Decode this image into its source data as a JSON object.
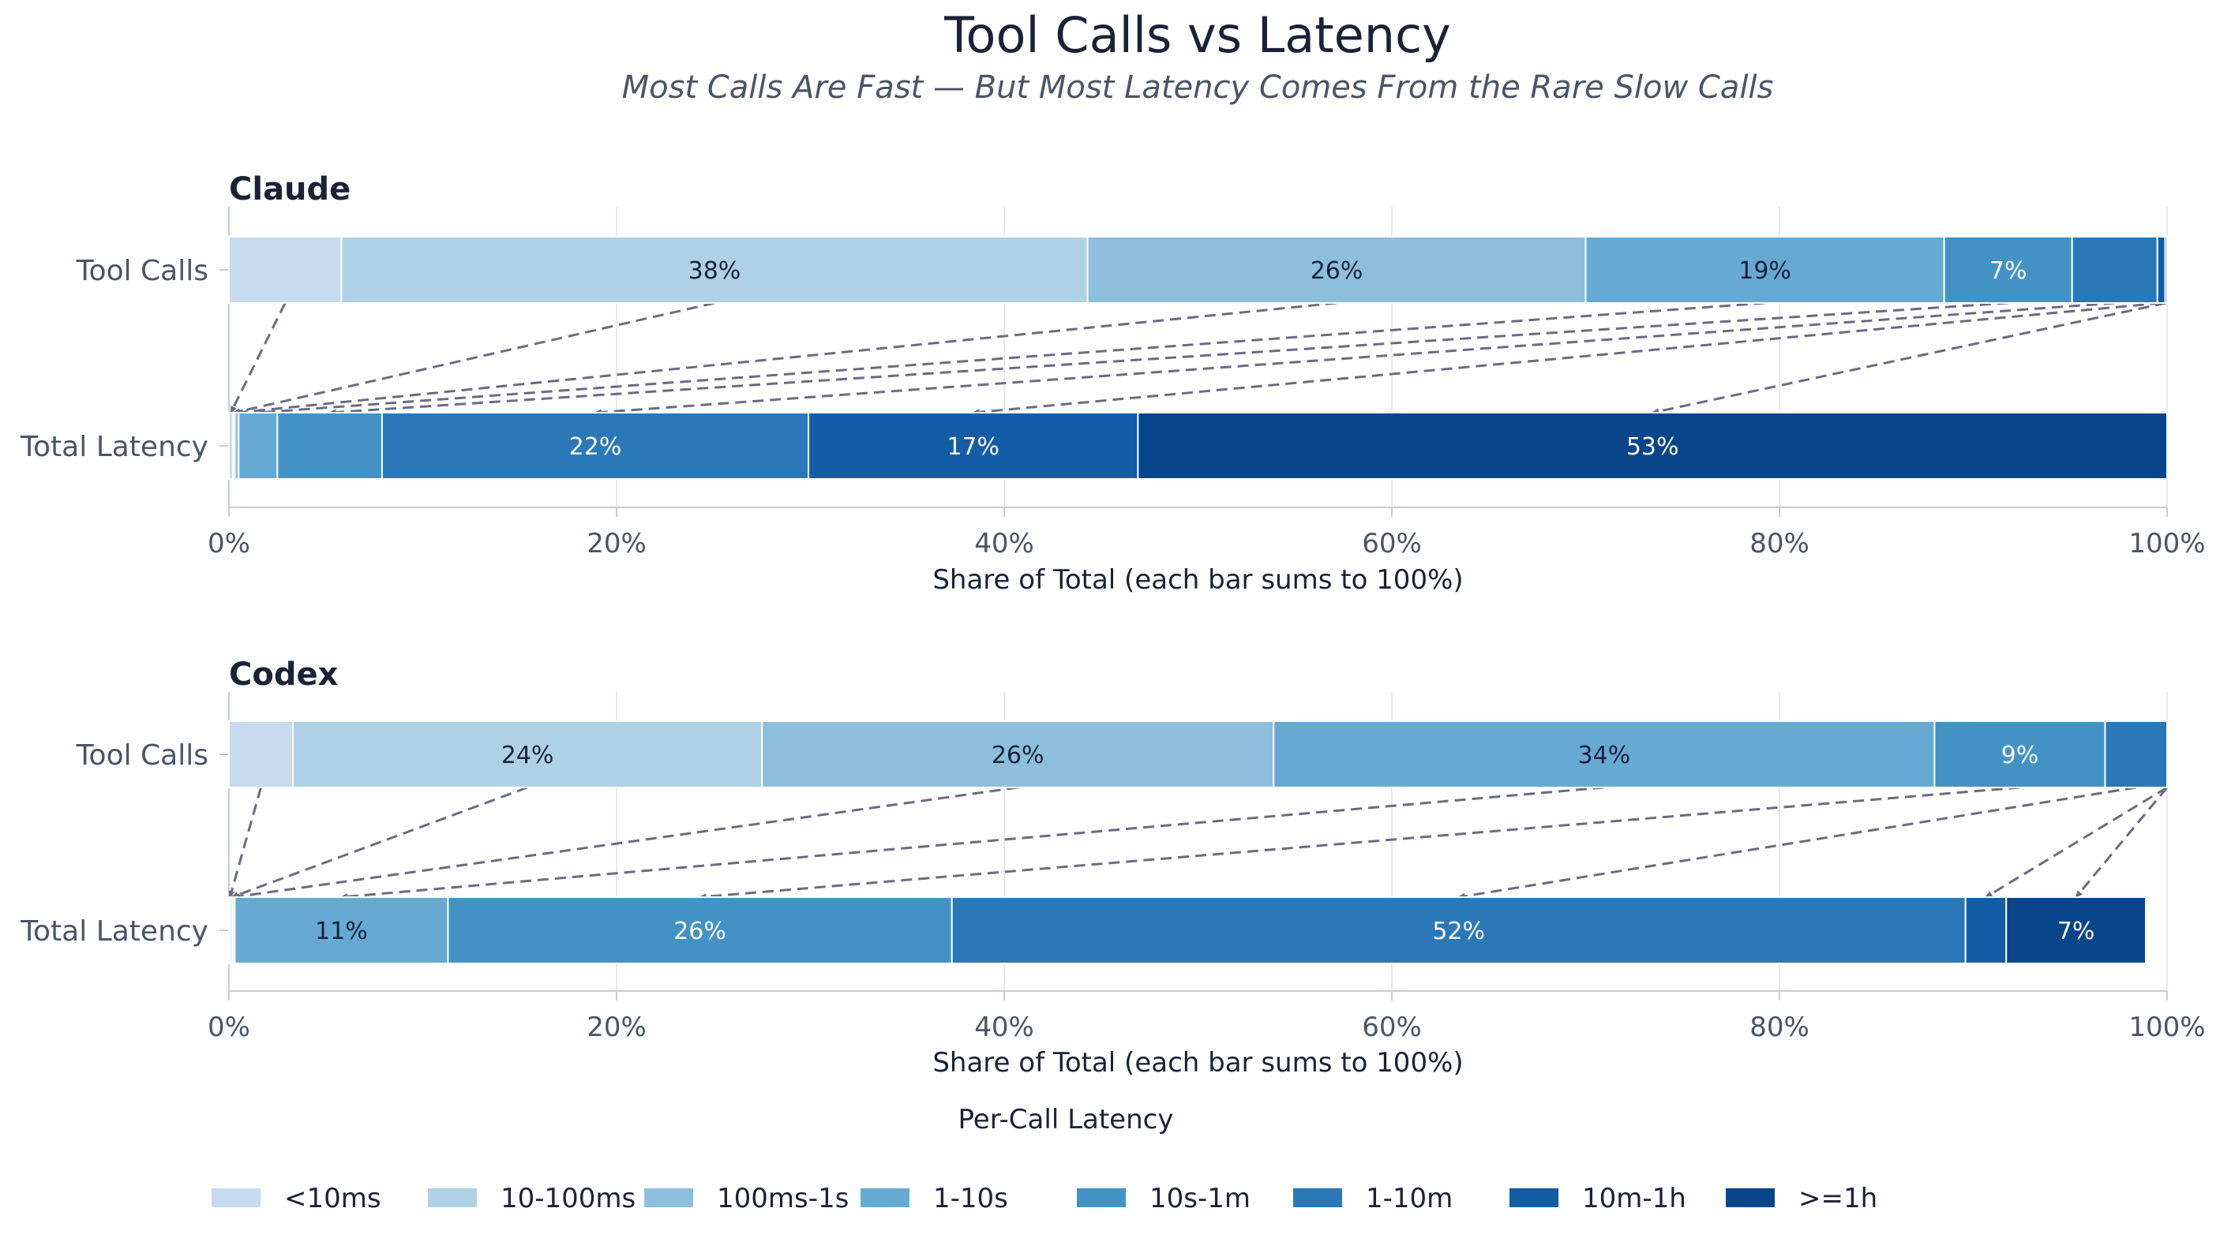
{
  "title": "Tool Calls vs Latency",
  "subtitle": "Most Calls Are Fast — But Most Latency Comes From the Rare Slow Calls",
  "legend_title": "Per-Call Latency",
  "colors": {
    "<10ms": "#c6dbef",
    "10-100ms": "#afd1e6",
    "100ms-1s": "#8dbfdd",
    "1-10s": "#66aad4",
    "10s-1m": "#4292c6",
    "1-10m": "#2a78b8",
    "10m-1h": "#125da6",
    ">=1h": "#08458a"
  },
  "chart_data": [
    {
      "type": "bar",
      "orientation": "horizontal-stacked",
      "title": "Claude",
      "xlabel": "Share of Total (each bar sums to 100%)",
      "xlim": [
        0,
        100
      ],
      "xticks": [
        "0%",
        "20%",
        "40%",
        "60%",
        "80%",
        "100%"
      ],
      "categories": [
        "Tool Calls",
        "Total Latency"
      ],
      "grid": true,
      "series": [
        {
          "name": "<10ms",
          "values": [
            5.8,
            0.2
          ]
        },
        {
          "name": "10-100ms",
          "values": [
            38.5,
            0.1
          ]
        },
        {
          "name": "100ms-1s",
          "values": [
            25.7,
            0.2
          ]
        },
        {
          "name": "1-10s",
          "values": [
            18.5,
            2.0
          ]
        },
        {
          "name": "10s-1m",
          "values": [
            6.6,
            5.4
          ]
        },
        {
          "name": "1-10m",
          "values": [
            4.4,
            22.0
          ]
        },
        {
          "name": "10m-1h",
          "values": [
            0.4,
            17.0
          ]
        },
        {
          "name": ">=1h",
          "values": [
            0.1,
            53.1
          ]
        }
      ],
      "segment_labels": [
        [
          "",
          "38%",
          "26%",
          "19%",
          "7%",
          "",
          "",
          ""
        ],
        [
          "",
          "",
          "",
          "",
          "",
          "22%",
          "17%",
          "53%"
        ]
      ]
    },
    {
      "type": "bar",
      "orientation": "horizontal-stacked",
      "title": "Codex",
      "xlabel": "Share of Total (each bar sums to 100%)",
      "xlim": [
        0,
        100
      ],
      "xticks": [
        "0%",
        "20%",
        "40%",
        "60%",
        "80%",
        "100%"
      ],
      "categories": [
        "Tool Calls",
        "Total Latency"
      ],
      "grid": true,
      "series": [
        {
          "name": "<10ms",
          "values": [
            3.3,
            0.1
          ]
        },
        {
          "name": "10-100ms",
          "values": [
            24.2,
            0.1
          ]
        },
        {
          "name": "100ms-1s",
          "values": [
            26.4,
            0.1
          ]
        },
        {
          "name": "1-10s",
          "values": [
            34.1,
            11.0
          ]
        },
        {
          "name": "10s-1m",
          "values": [
            8.8,
            26.0
          ]
        },
        {
          "name": "1-10m",
          "values": [
            3.2,
            52.3
          ]
        },
        {
          "name": "10m-1h",
          "values": [
            0,
            2.1
          ]
        },
        {
          "name": ">=1h",
          "values": [
            0,
            7.2
          ]
        }
      ],
      "segment_labels": [
        [
          "",
          "24%",
          "26%",
          "34%",
          "9%",
          "",
          "",
          ""
        ],
        [
          "",
          "",
          "",
          "11%",
          "26%",
          "52%",
          "",
          "7%"
        ]
      ]
    }
  ]
}
